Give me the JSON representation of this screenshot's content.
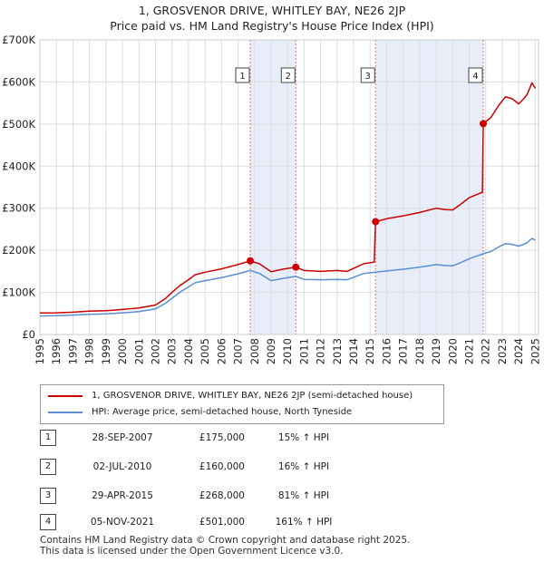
{
  "colors": {
    "price_paid": "#cc0000",
    "hpi": "#5b8fd0",
    "shade": "#e8eef9",
    "grid": "#dddddd",
    "marker_line": "#e07070"
  },
  "chart_data": {
    "type": "line",
    "title": "1, GROSVENOR DRIVE, WHITLEY BAY, NE26 2JP",
    "subtitle": "Price paid vs. HM Land Registry's House Price Index (HPI)",
    "xlim": [
      1995,
      2025.2
    ],
    "ylim": [
      0,
      700000
    ],
    "ytick_values": [
      0,
      100000,
      200000,
      300000,
      400000,
      500000,
      600000,
      700000
    ],
    "ytick_labels": [
      "£0",
      "£100K",
      "£200K",
      "£300K",
      "£400K",
      "£500K",
      "£600K",
      "£700K"
    ],
    "xtick_values": [
      1995,
      1996,
      1997,
      1998,
      1999,
      2000,
      2001,
      2002,
      2003,
      2004,
      2005,
      2006,
      2007,
      2008,
      2009,
      2010,
      2011,
      2012,
      2013,
      2014,
      2015,
      2016,
      2017,
      2018,
      2019,
      2020,
      2021,
      2022,
      2023,
      2024,
      2025
    ],
    "xtick_labels": [
      "1995",
      "1996",
      "1997",
      "1998",
      "1999",
      "2000",
      "2001",
      "2002",
      "2003",
      "2004",
      "2005",
      "2006",
      "2007",
      "2008",
      "2009",
      "2010",
      "2011",
      "2012",
      "2013",
      "2014",
      "2015",
      "2016",
      "2017",
      "2018",
      "2019",
      "2020",
      "2021",
      "2022",
      "2023",
      "2024",
      "2025"
    ],
    "shaded_spans": [
      [
        2007.74,
        2010.5
      ],
      [
        2015.33,
        2021.85
      ]
    ],
    "series": [
      {
        "name": "1, GROSVENOR DRIVE, WHITLEY BAY, NE26 2JP (semi-detached house)",
        "points": [
          [
            1995.0,
            51000
          ],
          [
            1996.0,
            51500
          ],
          [
            1997.0,
            53000
          ],
          [
            1998.0,
            55500
          ],
          [
            1999.0,
            56500
          ],
          [
            2000.0,
            59500
          ],
          [
            2001.0,
            63000
          ],
          [
            2002.0,
            70000
          ],
          [
            2002.6,
            85000
          ],
          [
            2003.0,
            100000
          ],
          [
            2003.5,
            117000
          ],
          [
            2004.0,
            130000
          ],
          [
            2004.4,
            142000
          ],
          [
            2005.0,
            148000
          ],
          [
            2006.0,
            156000
          ],
          [
            2007.0,
            166000
          ],
          [
            2007.74,
            175000
          ],
          [
            2008.3,
            168000
          ],
          [
            2009.0,
            149000
          ],
          [
            2009.7,
            155000
          ],
          [
            2010.5,
            160000
          ],
          [
            2011.0,
            152000
          ],
          [
            2012.0,
            150000
          ],
          [
            2013.0,
            152000
          ],
          [
            2013.6,
            150000
          ],
          [
            2014.0,
            157000
          ],
          [
            2014.6,
            168000
          ],
          [
            2015.25,
            172000
          ],
          [
            2015.33,
            268000
          ],
          [
            2016.0,
            275000
          ],
          [
            2017.0,
            282000
          ],
          [
            2018.0,
            290000
          ],
          [
            2019.0,
            300000
          ],
          [
            2019.5,
            297000
          ],
          [
            2020.0,
            296000
          ],
          [
            2020.5,
            310000
          ],
          [
            2021.0,
            325000
          ],
          [
            2021.8,
            338000
          ],
          [
            2021.85,
            501000
          ],
          [
            2022.3,
            515000
          ],
          [
            2022.8,
            545000
          ],
          [
            2023.2,
            565000
          ],
          [
            2023.6,
            560000
          ],
          [
            2024.0,
            548000
          ],
          [
            2024.3,
            560000
          ],
          [
            2024.5,
            570000
          ],
          [
            2024.8,
            598000
          ],
          [
            2025.0,
            585000
          ]
        ]
      },
      {
        "name": "HPI: Average price, semi-detached house, North Tyneside",
        "points": [
          [
            1995.0,
            44000
          ],
          [
            1996.0,
            44500
          ],
          [
            1997.0,
            46000
          ],
          [
            1998.0,
            48000
          ],
          [
            1999.0,
            49000
          ],
          [
            2000.0,
            51500
          ],
          [
            2001.0,
            54500
          ],
          [
            2002.0,
            61000
          ],
          [
            2002.6,
            74000
          ],
          [
            2003.0,
            86000
          ],
          [
            2003.5,
            101000
          ],
          [
            2004.0,
            113000
          ],
          [
            2004.4,
            123000
          ],
          [
            2005.0,
            128000
          ],
          [
            2006.0,
            135000
          ],
          [
            2007.0,
            144000
          ],
          [
            2007.74,
            152000
          ],
          [
            2008.3,
            145000
          ],
          [
            2009.0,
            128000
          ],
          [
            2009.7,
            133000
          ],
          [
            2010.5,
            138000
          ],
          [
            2011.0,
            131000
          ],
          [
            2012.0,
            130000
          ],
          [
            2013.0,
            131000
          ],
          [
            2013.6,
            130000
          ],
          [
            2014.0,
            136000
          ],
          [
            2014.6,
            145000
          ],
          [
            2015.33,
            148000
          ],
          [
            2016.0,
            151000
          ],
          [
            2017.0,
            155000
          ],
          [
            2018.0,
            160000
          ],
          [
            2019.0,
            166000
          ],
          [
            2019.5,
            164000
          ],
          [
            2020.0,
            163000
          ],
          [
            2020.5,
            171000
          ],
          [
            2021.0,
            180000
          ],
          [
            2021.85,
            192000
          ],
          [
            2022.3,
            197000
          ],
          [
            2022.8,
            208000
          ],
          [
            2023.2,
            216000
          ],
          [
            2023.6,
            214000
          ],
          [
            2024.0,
            210000
          ],
          [
            2024.3,
            214000
          ],
          [
            2024.5,
            218000
          ],
          [
            2024.8,
            228000
          ],
          [
            2025.0,
            224000
          ]
        ]
      }
    ],
    "sales": [
      {
        "label": "1",
        "x": 2007.74,
        "price": 175000
      },
      {
        "label": "2",
        "x": 2010.5,
        "price": 160000
      },
      {
        "label": "3",
        "x": 2015.33,
        "price": 268000
      },
      {
        "label": "4",
        "x": 2021.85,
        "price": 501000
      }
    ]
  },
  "legend": {
    "price_label": "1, GROSVENOR DRIVE, WHITLEY BAY, NE26 2JP (semi-detached house)",
    "hpi_label": "HPI: Average price, semi-detached house, North Tyneside"
  },
  "transactions": [
    {
      "num": "1",
      "date": "28-SEP-2007",
      "price": "£175,000",
      "hpi": "15% ↑ HPI"
    },
    {
      "num": "2",
      "date": "02-JUL-2010",
      "price": "£160,000",
      "hpi": "16% ↑ HPI"
    },
    {
      "num": "3",
      "date": "29-APR-2015",
      "price": "£268,000",
      "hpi": "81% ↑ HPI"
    },
    {
      "num": "4",
      "date": "05-NOV-2021",
      "price": "£501,000",
      "hpi": "161% ↑ HPI"
    }
  ],
  "footer": {
    "line1": "Contains HM Land Registry data © Crown copyright and database right 2025.",
    "line2": "This data is licensed under the Open Government Licence v3.0."
  }
}
